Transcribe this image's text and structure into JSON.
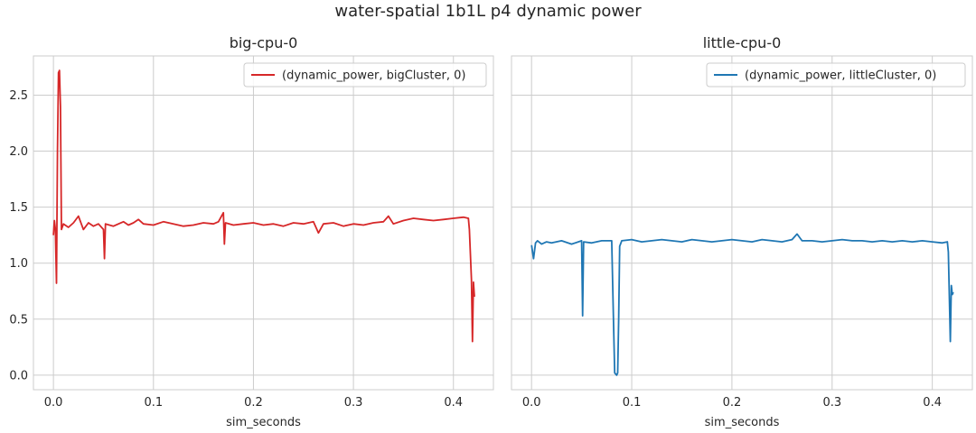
{
  "figure": {
    "suptitle": "water-spatial 1b1L p4 dynamic power"
  },
  "chart_data": [
    {
      "type": "line",
      "title": "big-cpu-0",
      "xlabel": "sim_seconds",
      "ylabel": "",
      "xlim": [
        -0.02,
        0.44
      ],
      "ylim": [
        -0.13,
        2.85
      ],
      "xticks": [
        0.0,
        0.1,
        0.2,
        0.3,
        0.4
      ],
      "xtick_labels": [
        "0.0",
        "0.1",
        "0.2",
        "0.3",
        "0.4"
      ],
      "yticks": [
        0.0,
        0.5,
        1.0,
        1.5,
        2.0,
        2.5
      ],
      "ytick_labels": [
        "0.0",
        "0.5",
        "1.0",
        "1.5",
        "2.0",
        "2.5"
      ],
      "grid": true,
      "legend_position": "top-right",
      "series": [
        {
          "name": "(dynamic_power, bigCluster, 0)",
          "color": "#d62728",
          "x": [
            0.0,
            0.001,
            0.002,
            0.003,
            0.004,
            0.005,
            0.006,
            0.007,
            0.008,
            0.01,
            0.015,
            0.02,
            0.025,
            0.03,
            0.035,
            0.04,
            0.045,
            0.05,
            0.051,
            0.052,
            0.06,
            0.07,
            0.075,
            0.08,
            0.085,
            0.09,
            0.1,
            0.11,
            0.12,
            0.13,
            0.14,
            0.15,
            0.16,
            0.165,
            0.17,
            0.171,
            0.172,
            0.18,
            0.19,
            0.2,
            0.21,
            0.22,
            0.23,
            0.24,
            0.25,
            0.26,
            0.265,
            0.27,
            0.28,
            0.29,
            0.3,
            0.31,
            0.32,
            0.33,
            0.335,
            0.34,
            0.35,
            0.36,
            0.37,
            0.38,
            0.39,
            0.4,
            0.41,
            0.415,
            0.416,
            0.418,
            0.419,
            0.42,
            0.421
          ],
          "y": [
            1.25,
            1.38,
            1.3,
            0.82,
            2.0,
            2.7,
            2.72,
            2.4,
            1.3,
            1.35,
            1.32,
            1.36,
            1.42,
            1.3,
            1.36,
            1.33,
            1.35,
            1.3,
            1.04,
            1.35,
            1.33,
            1.37,
            1.34,
            1.36,
            1.39,
            1.35,
            1.34,
            1.37,
            1.35,
            1.33,
            1.34,
            1.36,
            1.35,
            1.37,
            1.45,
            1.17,
            1.36,
            1.34,
            1.35,
            1.36,
            1.34,
            1.35,
            1.33,
            1.36,
            1.35,
            1.37,
            1.27,
            1.35,
            1.36,
            1.33,
            1.35,
            1.34,
            1.36,
            1.37,
            1.42,
            1.35,
            1.38,
            1.4,
            1.39,
            1.38,
            1.39,
            1.4,
            1.41,
            1.4,
            1.3,
            0.85,
            0.3,
            0.83,
            0.7
          ]
        }
      ]
    },
    {
      "type": "line",
      "title": "little-cpu-0",
      "xlabel": "sim_seconds",
      "ylabel": "",
      "xlim": [
        -0.02,
        0.44
      ],
      "ylim": [
        -0.13,
        2.85
      ],
      "xticks": [
        0.0,
        0.1,
        0.2,
        0.3,
        0.4
      ],
      "xtick_labels": [
        "0.0",
        "0.1",
        "0.2",
        "0.3",
        "0.4"
      ],
      "yticks": [
        0.0,
        0.5,
        1.0,
        1.5,
        2.0,
        2.5
      ],
      "grid": true,
      "legend_position": "top-right",
      "series": [
        {
          "name": "(dynamic_power, littleCluster, 0)",
          "color": "#1f77b4",
          "x": [
            0.0,
            0.002,
            0.004,
            0.006,
            0.01,
            0.015,
            0.02,
            0.03,
            0.04,
            0.05,
            0.051,
            0.052,
            0.06,
            0.07,
            0.08,
            0.082,
            0.083,
            0.085,
            0.086,
            0.087,
            0.088,
            0.09,
            0.1,
            0.11,
            0.12,
            0.13,
            0.14,
            0.15,
            0.16,
            0.17,
            0.18,
            0.19,
            0.2,
            0.21,
            0.22,
            0.23,
            0.24,
            0.25,
            0.26,
            0.265,
            0.27,
            0.28,
            0.29,
            0.3,
            0.31,
            0.32,
            0.33,
            0.34,
            0.35,
            0.36,
            0.37,
            0.38,
            0.39,
            0.4,
            0.41,
            0.415,
            0.416,
            0.418,
            0.419,
            0.42,
            0.421
          ],
          "y": [
            1.16,
            1.04,
            1.18,
            1.2,
            1.17,
            1.19,
            1.18,
            1.2,
            1.17,
            1.2,
            0.53,
            1.19,
            1.18,
            1.2,
            1.2,
            0.4,
            0.02,
            0.0,
            0.02,
            0.5,
            1.15,
            1.2,
            1.21,
            1.19,
            1.2,
            1.21,
            1.2,
            1.19,
            1.21,
            1.2,
            1.19,
            1.2,
            1.21,
            1.2,
            1.19,
            1.21,
            1.2,
            1.19,
            1.21,
            1.26,
            1.2,
            1.2,
            1.19,
            1.2,
            1.21,
            1.2,
            1.2,
            1.19,
            1.2,
            1.19,
            1.2,
            1.19,
            1.2,
            1.19,
            1.18,
            1.19,
            1.1,
            0.3,
            0.8,
            0.72,
            0.74
          ]
        }
      ]
    }
  ]
}
